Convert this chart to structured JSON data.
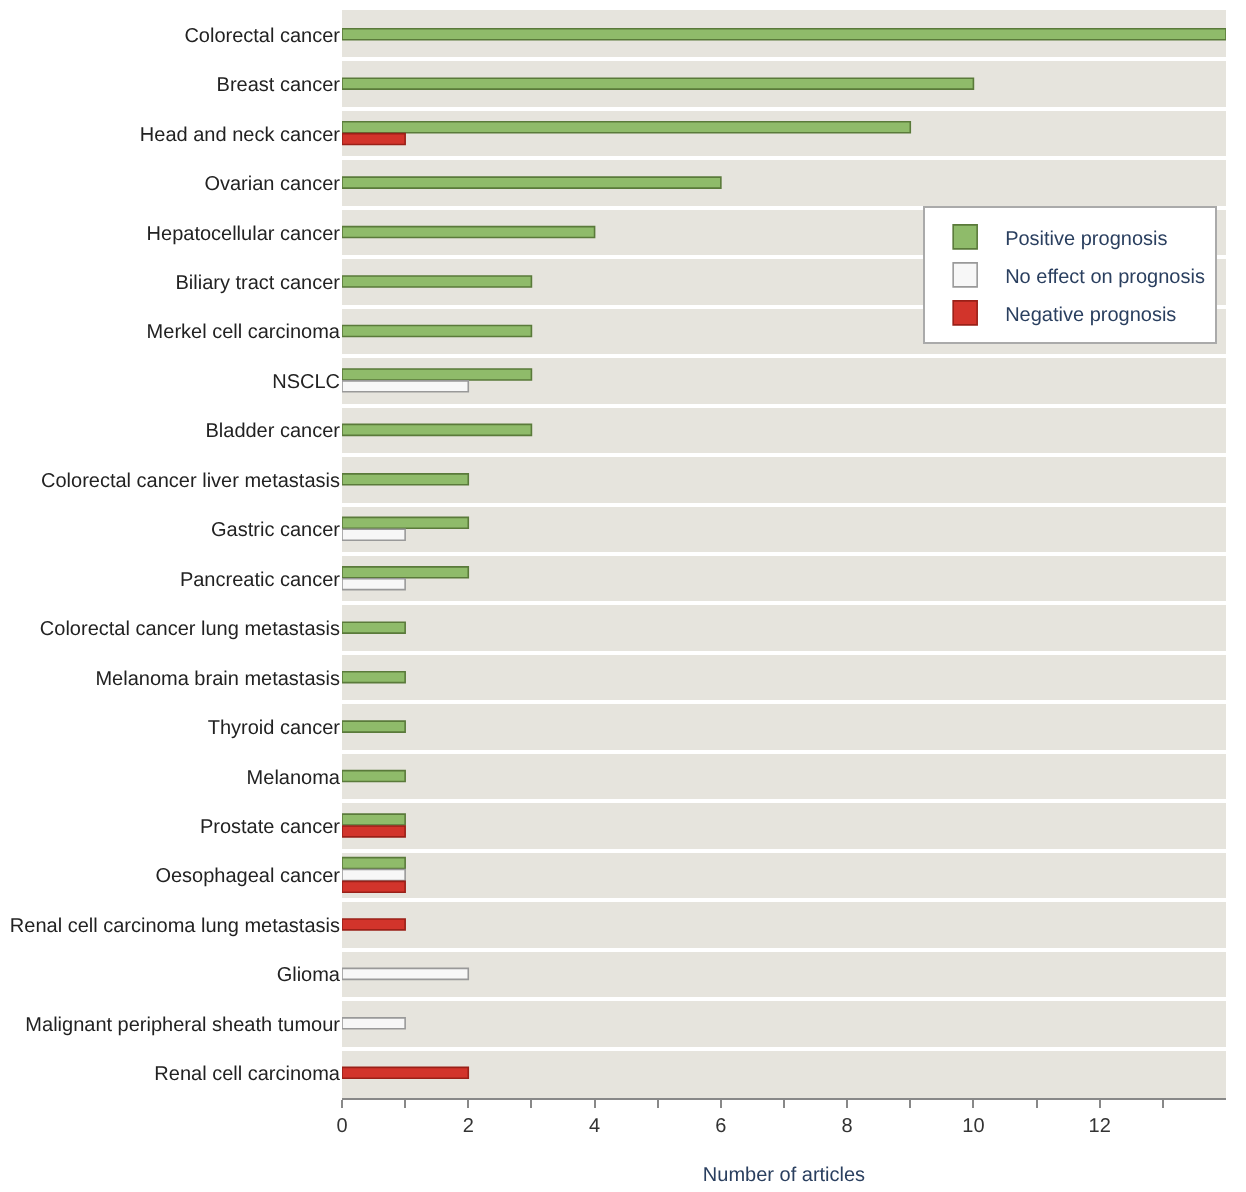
{
  "chart_data": {
    "type": "bar",
    "orientation": "horizontal",
    "xlabel": "Number of articles",
    "categories": [
      "Colorectal cancer",
      "Breast cancer",
      "Head and neck cancer",
      "Ovarian cancer",
      "Hepatocellular cancer",
      "Biliary tract cancer",
      "Merkel cell carcinoma",
      "NSCLC",
      "Bladder cancer",
      "Colorectal cancer liver metastasis",
      "Gastric cancer",
      "Pancreatic cancer",
      "Colorectal cancer lung metastasis",
      "Melanoma brain metastasis",
      "Thyroid cancer",
      "Melanoma",
      "Prostate cancer",
      "Oesophageal cancer",
      "Renal cell carcinoma lung metastasis",
      "Glioma",
      "Malignant peripheral sheath tumour",
      "Renal cell carcinoma"
    ],
    "series": [
      {
        "name": "Positive prognosis",
        "color": "#8fbb6a",
        "values": [
          14,
          10,
          9,
          6,
          4,
          3,
          3,
          3,
          3,
          2,
          2,
          2,
          1,
          1,
          1,
          1,
          1,
          1,
          null,
          null,
          null,
          null
        ]
      },
      {
        "name": "No effect on prognosis",
        "color": "#f7f7f7",
        "values": [
          null,
          null,
          null,
          null,
          null,
          null,
          null,
          2,
          null,
          null,
          1,
          1,
          null,
          null,
          null,
          null,
          null,
          1,
          null,
          2,
          1,
          null
        ]
      },
      {
        "name": "Negative prognosis",
        "color": "#d2342b",
        "values": [
          null,
          null,
          1,
          null,
          null,
          null,
          null,
          null,
          null,
          null,
          null,
          null,
          null,
          null,
          null,
          null,
          1,
          1,
          1,
          null,
          null,
          2
        ]
      }
    ],
    "xlim": [
      0,
      14
    ],
    "xticks": [
      0,
      {
        "value": 1,
        "label": null
      },
      2,
      {
        "value": 3,
        "label": null
      },
      4,
      {
        "value": 5,
        "label": null
      },
      6,
      {
        "value": 7,
        "label": null
      },
      8,
      {
        "value": 9,
        "label": null
      },
      10,
      {
        "value": 11,
        "label": null
      },
      12,
      {
        "value": 13,
        "label": null
      }
    ],
    "grid": "y",
    "legend": "top right"
  }
}
